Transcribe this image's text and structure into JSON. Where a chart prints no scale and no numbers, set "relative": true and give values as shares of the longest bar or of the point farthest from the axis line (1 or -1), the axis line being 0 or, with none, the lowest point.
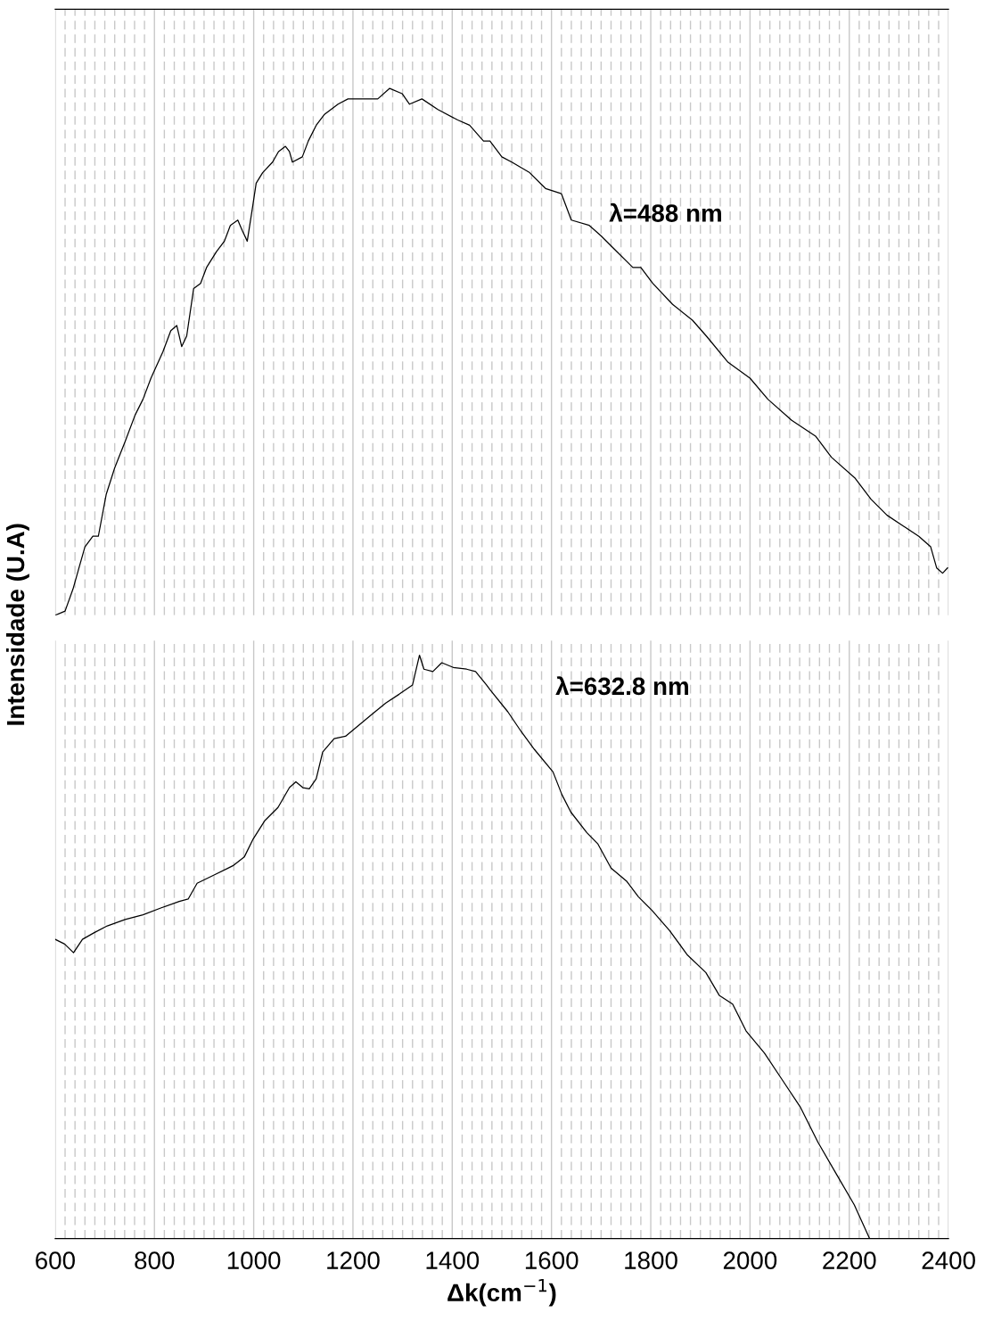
{
  "chart_data": [
    {
      "type": "line",
      "relative": true,
      "ylabel": "Intensidade (U.A)",
      "annotations": [
        "λ=488 nm"
      ],
      "xlim": [
        600,
        2400
      ],
      "xticks": [
        600,
        800,
        1000,
        1200,
        1400,
        1600,
        1800,
        2000,
        2200,
        2400
      ],
      "grid": "x",
      "tick_labels": false,
      "marker": "none",
      "line_style": "solid",
      "series": [
        {
          "color": "#000000",
          "x": [
            600,
            620,
            636,
            648,
            660,
            676,
            687,
            703,
            720,
            741,
            761,
            777,
            793,
            817,
            833,
            845,
            855,
            865,
            879,
            893,
            905,
            925,
            941,
            953,
            968,
            977,
            987,
            997,
            1005,
            1018,
            1038,
            1050,
            1064,
            1072,
            1078,
            1098,
            1110,
            1126,
            1142,
            1170,
            1190,
            1210,
            1250,
            1274,
            1299,
            1314,
            1339,
            1371,
            1411,
            1435,
            1463,
            1476,
            1500,
            1520,
            1556,
            1588,
            1620,
            1640,
            1676,
            1700,
            1732,
            1764,
            1780,
            1804,
            1844,
            1884,
            1912,
            1956,
            2000,
            2036,
            2084,
            2132,
            2164,
            2212,
            2244,
            2276,
            2308,
            2340,
            2364,
            2376,
            2388,
            2398
          ],
          "values": [
            0,
            0.008,
            0.05,
            0.09,
            0.13,
            0.15,
            0.15,
            0.23,
            0.28,
            0.33,
            0.38,
            0.41,
            0.45,
            0.5,
            0.54,
            0.55,
            0.51,
            0.53,
            0.62,
            0.63,
            0.66,
            0.69,
            0.71,
            0.74,
            0.75,
            0.73,
            0.71,
            0.77,
            0.82,
            0.84,
            0.86,
            0.88,
            0.89,
            0.88,
            0.86,
            0.87,
            0.9,
            0.93,
            0.95,
            0.97,
            0.98,
            0.98,
            0.98,
            1.0,
            0.99,
            0.97,
            0.98,
            0.96,
            0.94,
            0.93,
            0.9,
            0.9,
            0.87,
            0.86,
            0.84,
            0.81,
            0.8,
            0.75,
            0.74,
            0.72,
            0.69,
            0.66,
            0.66,
            0.63,
            0.59,
            0.56,
            0.53,
            0.48,
            0.45,
            0.41,
            0.37,
            0.34,
            0.3,
            0.26,
            0.22,
            0.19,
            0.17,
            0.15,
            0.13,
            0.09,
            0.08,
            0.09
          ]
        }
      ]
    },
    {
      "type": "line",
      "relative": true,
      "xlabel": "Δk(cm$^{−1}$)",
      "annotations": [
        "λ=632.8 nm"
      ],
      "xlim": [
        600,
        2400
      ],
      "xticks": [
        600,
        800,
        1000,
        1200,
        1400,
        1600,
        1800,
        2000,
        2200,
        2400
      ],
      "grid": "x",
      "tick_labels": "x",
      "marker": "none",
      "line_style": "solid",
      "series": [
        {
          "color": "#000000",
          "x": [
            600,
            619,
            637,
            655,
            678,
            705,
            741,
            777,
            814,
            850,
            868,
            886,
            922,
            958,
            981,
            999,
            1022,
            1049,
            1072,
            1085,
            1099,
            1112,
            1126,
            1139,
            1162,
            1185,
            1212,
            1239,
            1266,
            1293,
            1320,
            1334,
            1343,
            1361,
            1379,
            1402,
            1429,
            1447,
            1469,
            1476,
            1512,
            1539,
            1566,
            1603,
            1621,
            1639,
            1671,
            1693,
            1720,
            1752,
            1775,
            1802,
            1838,
            1874,
            1911,
            1938,
            1965,
            1992,
            2029,
            2065,
            2101,
            2137,
            2173,
            2210,
            2241
          ],
          "values": [
            0.513,
            0.505,
            0.49,
            0.513,
            0.524,
            0.536,
            0.547,
            0.555,
            0.567,
            0.578,
            0.582,
            0.609,
            0.624,
            0.639,
            0.654,
            0.685,
            0.716,
            0.739,
            0.773,
            0.783,
            0.773,
            0.771,
            0.788,
            0.834,
            0.857,
            0.861,
            0.88,
            0.899,
            0.918,
            0.933,
            0.949,
            1.0,
            0.976,
            0.972,
            0.987,
            0.979,
            0.976,
            0.972,
            0.949,
            0.941,
            0.903,
            0.869,
            0.838,
            0.8,
            0.761,
            0.731,
            0.696,
            0.677,
            0.635,
            0.612,
            0.586,
            0.563,
            0.528,
            0.486,
            0.456,
            0.417,
            0.402,
            0.356,
            0.318,
            0.272,
            0.226,
            0.165,
            0.112,
            0.058,
            0.0
          ]
        }
      ]
    }
  ]
}
